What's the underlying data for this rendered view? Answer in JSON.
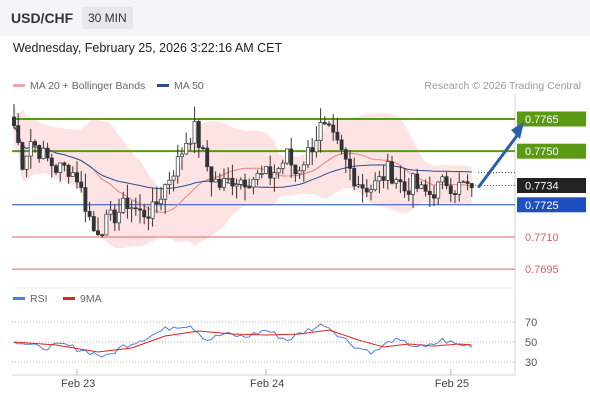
{
  "header": {
    "symbol": "USD/CHF",
    "timeframe": "30 MIN"
  },
  "datetime": "Wednesday, February 25, 2026 3:22:16 AM CET",
  "legend": {
    "ma20_label": "MA 20 + Bollinger Bands",
    "ma50_label": "MA 50",
    "credit": "Research © 2026 Trading Central",
    "rsi_label": "RSI",
    "rsi_ma_label": "9MA"
  },
  "colors": {
    "ma20": "#f08080",
    "ma50": "#2c4f8c",
    "bollinger_fill": "#fde3e3",
    "resistance": "#5a9a12",
    "pivot": "#1f4fbf",
    "support": "#e06060",
    "candle": "#333333",
    "forecast_arrow": "#2a5ea8",
    "rsi": "#4d7fd6",
    "rsi_ma": "#dd2222"
  },
  "chart_data": [
    {
      "type": "candlestick",
      "title": "",
      "x_ticks": [
        "Feb 23",
        "Feb 24",
        "Feb 25"
      ],
      "ylim": [
        0.7689,
        0.7772
      ],
      "levels": [
        {
          "value": 0.7765,
          "label": "0.7765",
          "role": "resistance"
        },
        {
          "value": 0.775,
          "label": "0.7750",
          "role": "resistance"
        },
        {
          "value": 0.7725,
          "label": "0.7725",
          "role": "pivot"
        },
        {
          "value": 0.771,
          "label": "0.7710",
          "role": "support"
        },
        {
          "value": 0.7695,
          "label": "0.7695",
          "role": "support"
        }
      ],
      "last_price": {
        "value": 0.7734,
        "label": "0.7734"
      },
      "forecast": {
        "direction": "up",
        "target": 0.7765
      },
      "close_anchors": [
        [
          0,
          0.7762
        ],
        [
          2,
          0.7745
        ],
        [
          4,
          0.7755
        ],
        [
          7,
          0.7748
        ],
        [
          10,
          0.7742
        ],
        [
          13,
          0.7742
        ],
        [
          15,
          0.7738
        ],
        [
          17,
          0.7725
        ],
        [
          19,
          0.7713
        ],
        [
          21,
          0.7715
        ],
        [
          24,
          0.772
        ],
        [
          27,
          0.7726
        ],
        [
          30,
          0.7721
        ],
        [
          33,
          0.7722
        ],
        [
          35,
          0.773
        ],
        [
          37,
          0.7738
        ],
        [
          39,
          0.7745
        ],
        [
          41,
          0.7755
        ],
        [
          43,
          0.776
        ],
        [
          45,
          0.7748
        ],
        [
          47,
          0.7738
        ],
        [
          49,
          0.7734
        ],
        [
          52,
          0.7737
        ],
        [
          55,
          0.7737
        ],
        [
          58,
          0.7738
        ],
        [
          61,
          0.7739
        ],
        [
          63,
          0.7742
        ],
        [
          65,
          0.7748
        ],
        [
          67,
          0.774
        ],
        [
          69,
          0.7746
        ],
        [
          71,
          0.7753
        ],
        [
          73,
          0.7761
        ],
        [
          75,
          0.7758
        ],
        [
          77,
          0.7752
        ],
        [
          79,
          0.7745
        ],
        [
          81,
          0.7738
        ],
        [
          83,
          0.7734
        ],
        [
          85,
          0.7733
        ],
        [
          87,
          0.7736
        ],
        [
          89,
          0.7741
        ],
        [
          91,
          0.7738
        ],
        [
          93,
          0.7732
        ],
        [
          95,
          0.7735
        ],
        [
          97,
          0.7731
        ],
        [
          99,
          0.773
        ],
        [
          101,
          0.7733
        ],
        [
          103,
          0.7736
        ],
        [
          105,
          0.7733
        ],
        [
          107,
          0.7734
        ],
        [
          109,
          0.7733
        ]
      ]
    },
    {
      "type": "line",
      "title": "RSI",
      "ylim": [
        20,
        80
      ],
      "y_ticks": [
        70,
        50,
        30
      ],
      "series": [
        {
          "name": "RSI",
          "anchors": [
            [
              0,
              52
            ],
            [
              6,
              44
            ],
            [
              12,
              47
            ],
            [
              18,
              40
            ],
            [
              22,
              35
            ],
            [
              26,
              46
            ],
            [
              30,
              52
            ],
            [
              34,
              59
            ],
            [
              38,
              66
            ],
            [
              42,
              67
            ],
            [
              46,
              52
            ],
            [
              50,
              58
            ],
            [
              55,
              55
            ],
            [
              60,
              62
            ],
            [
              65,
              52
            ],
            [
              70,
              62
            ],
            [
              74,
              68
            ],
            [
              78,
              55
            ],
            [
              82,
              44
            ],
            [
              86,
              40
            ],
            [
              90,
              52
            ],
            [
              94,
              48
            ],
            [
              98,
              44
            ],
            [
              102,
              52
            ],
            [
              106,
              47
            ],
            [
              109,
              47
            ]
          ]
        },
        {
          "name": "9MA",
          "anchors": [
            [
              0,
              50
            ],
            [
              10,
              47
            ],
            [
              20,
              40
            ],
            [
              28,
              44
            ],
            [
              36,
              56
            ],
            [
              44,
              61
            ],
            [
              52,
              58
            ],
            [
              60,
              57
            ],
            [
              68,
              58
            ],
            [
              75,
              62
            ],
            [
              82,
              52
            ],
            [
              88,
              45
            ],
            [
              94,
              48
            ],
            [
              100,
              46
            ],
            [
              106,
              48
            ],
            [
              109,
              47
            ]
          ]
        }
      ]
    }
  ]
}
